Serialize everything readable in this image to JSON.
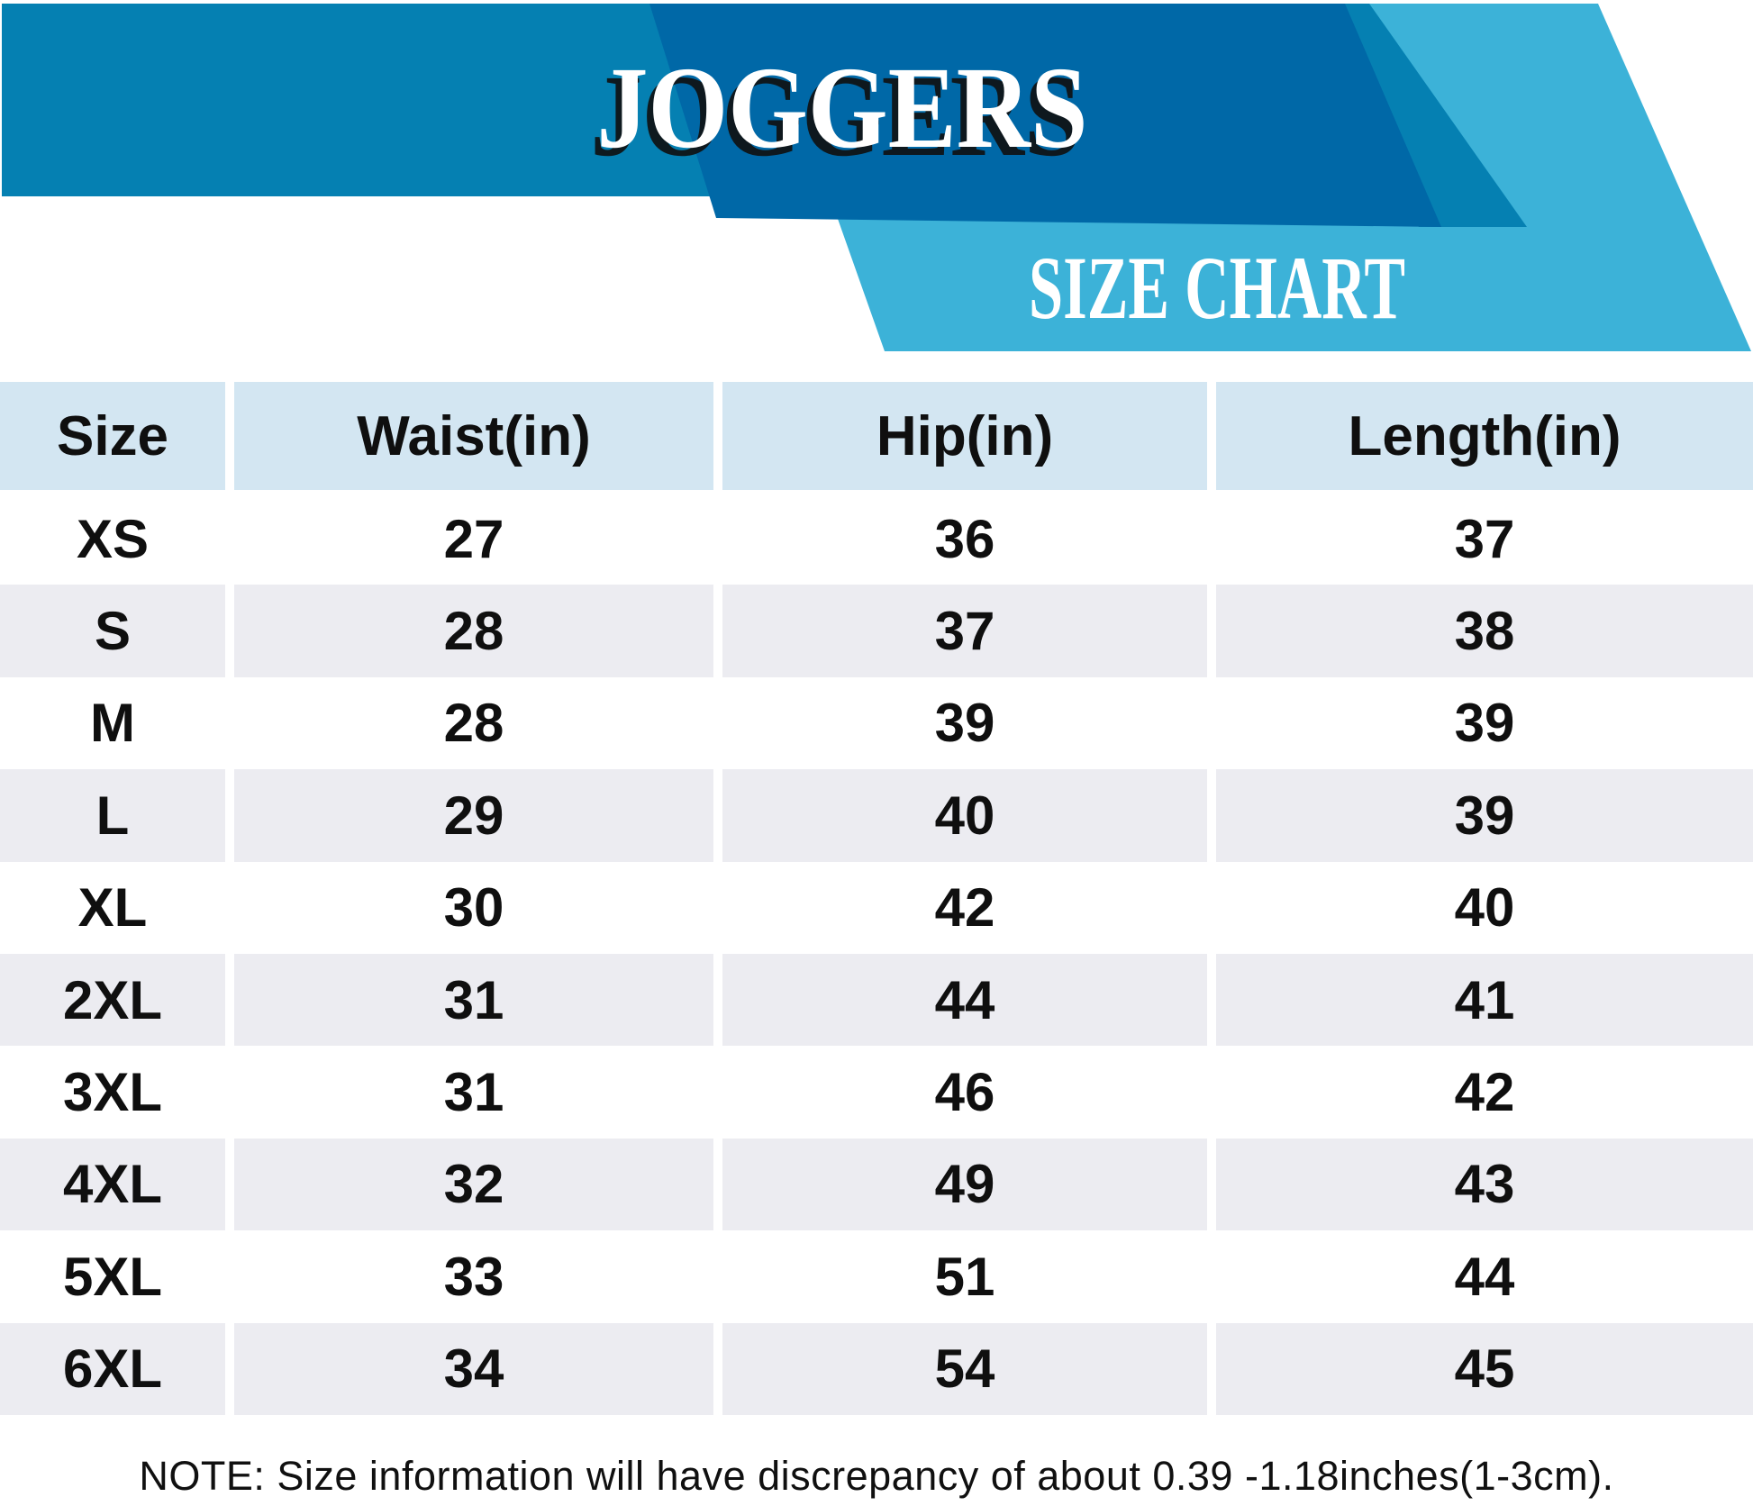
{
  "chart_data": {
    "type": "table",
    "title": "JOGGERS",
    "subtitle": "SIZE CHART",
    "columns": [
      "Size",
      "Waist(in)",
      "Hip(in)",
      "Length(in)"
    ],
    "rows": [
      [
        "XS",
        "27",
        "36",
        "37"
      ],
      [
        "S",
        "28",
        "37",
        "38"
      ],
      [
        "M",
        "28",
        "39",
        "39"
      ],
      [
        "L",
        "29",
        "40",
        "39"
      ],
      [
        "XL",
        "30",
        "42",
        "40"
      ],
      [
        "2XL",
        "31",
        "44",
        "41"
      ],
      [
        "3XL",
        "31",
        "46",
        "42"
      ],
      [
        "4XL",
        "32",
        "49",
        "43"
      ],
      [
        "5XL",
        "33",
        "51",
        "44"
      ],
      [
        "6XL",
        "34",
        "54",
        "45"
      ]
    ],
    "note": "NOTE: Size information will have discrepancy of about 0.39 -1.18inches(1-3cm).",
    "layout_hints": {
      "header_row_background": "light blue",
      "row_striping": "alternating white / light gray starting white at XS",
      "grid": "off, columns separated by white gutters"
    }
  },
  "colors": {
    "banner_medium_blue": "#0580b2",
    "banner_dark_blue": "#0068a7",
    "banner_light_blue": "#3cb2d8",
    "table_header_bg": "#d3e6f2",
    "row_stripe_bg": "#ececf1",
    "text": "#0f0f0f"
  }
}
